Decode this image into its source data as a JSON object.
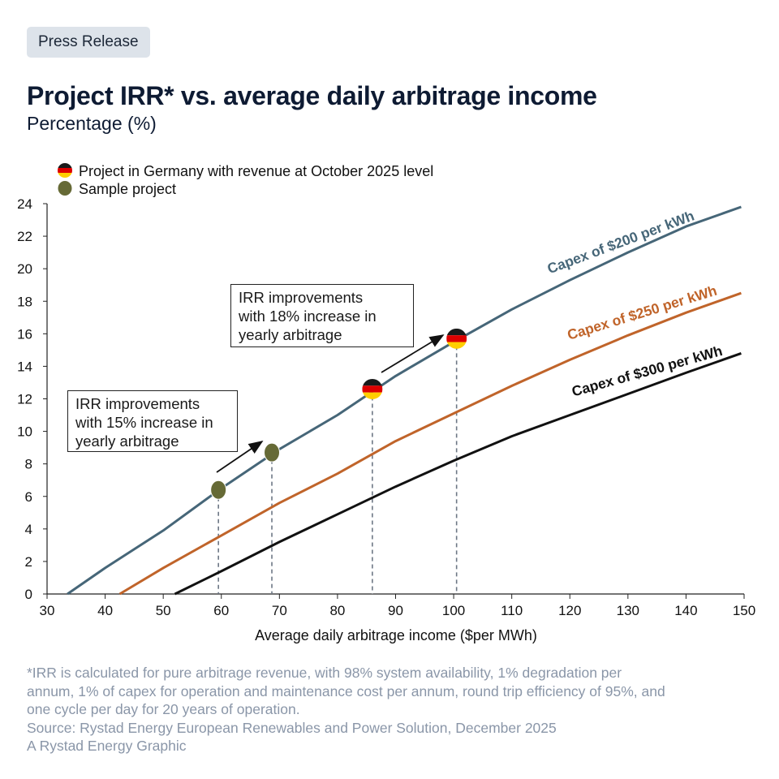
{
  "badge": "Press Release",
  "title": "Project IRR* vs. average daily arbitrage income",
  "subtitle": "Percentage (%)",
  "legend": {
    "germany": "Project in Germany with revenue at October 2025 level",
    "sample": "Sample project"
  },
  "annotations": {
    "upper": [
      "IRR improvements",
      "with 18% increase in",
      "yearly arbitrage"
    ],
    "lower": [
      "IRR improvements",
      "with 15% increase in",
      "yearly arbitrage"
    ]
  },
  "footnote": [
    "*IRR is calculated for pure arbitrage revenue, with 98% system availability, 1% degradation per",
    "annum, 1% of capex for operation and maintenance cost per annum, round trip efficiency of 95%, and",
    "one cycle per day for 20 years of operation.",
    "Source: Rystad Energy European Renewables and Power Solution, December 2025",
    "A Rystad Energy Graphic"
  ],
  "colors": {
    "capex200": "#466678",
    "capex250": "#c0642a",
    "capex300": "#111111",
    "sample": "#666a36",
    "germany_black": "#1a1a1a",
    "germany_red": "#dd0000",
    "germany_gold": "#ffce00",
    "guide": "#6d7785"
  },
  "chart_data": {
    "type": "line",
    "xlabel": "Average daily arbitrage income ($per MWh)",
    "ylabel": "",
    "xlim": [
      30,
      150
    ],
    "ylim": [
      0,
      24
    ],
    "xticks": [
      30,
      40,
      50,
      60,
      70,
      80,
      90,
      100,
      110,
      120,
      130,
      140,
      150
    ],
    "yticks": [
      0,
      2,
      4,
      6,
      8,
      10,
      12,
      14,
      16,
      18,
      20,
      22,
      24
    ],
    "series": [
      {
        "name": "Capex of $200 per kWh",
        "color_key": "capex200",
        "x": [
          33.5,
          40,
          50,
          60,
          70,
          80,
          90,
          100,
          110,
          120,
          130,
          140,
          149.5
        ],
        "y": [
          0,
          1.6,
          3.9,
          6.5,
          8.9,
          11.0,
          13.4,
          15.5,
          17.5,
          19.3,
          21.0,
          22.6,
          23.8
        ]
      },
      {
        "name": "Capex of $250 per kWh",
        "color_key": "capex250",
        "x": [
          42.5,
          50,
          60,
          70,
          80,
          90,
          100,
          110,
          120,
          130,
          140,
          149.5
        ],
        "y": [
          0,
          1.6,
          3.6,
          5.6,
          7.4,
          9.4,
          11.1,
          12.8,
          14.4,
          15.9,
          17.3,
          18.5
        ]
      },
      {
        "name": "Capex of $300 per kWh",
        "color_key": "capex300",
        "x": [
          52,
          60,
          70,
          80,
          90,
          100,
          110,
          120,
          130,
          140,
          149.5
        ],
        "y": [
          0,
          1.4,
          3.2,
          4.9,
          6.6,
          8.2,
          9.7,
          11.0,
          12.3,
          13.6,
          14.8
        ]
      }
    ],
    "markers": [
      {
        "type": "sample",
        "x": 59.5,
        "y": 6.4
      },
      {
        "type": "sample",
        "x": 68.7,
        "y": 8.7
      },
      {
        "type": "germany",
        "x": 86,
        "y": 12.6
      },
      {
        "type": "germany",
        "x": 100.5,
        "y": 15.7
      }
    ]
  }
}
